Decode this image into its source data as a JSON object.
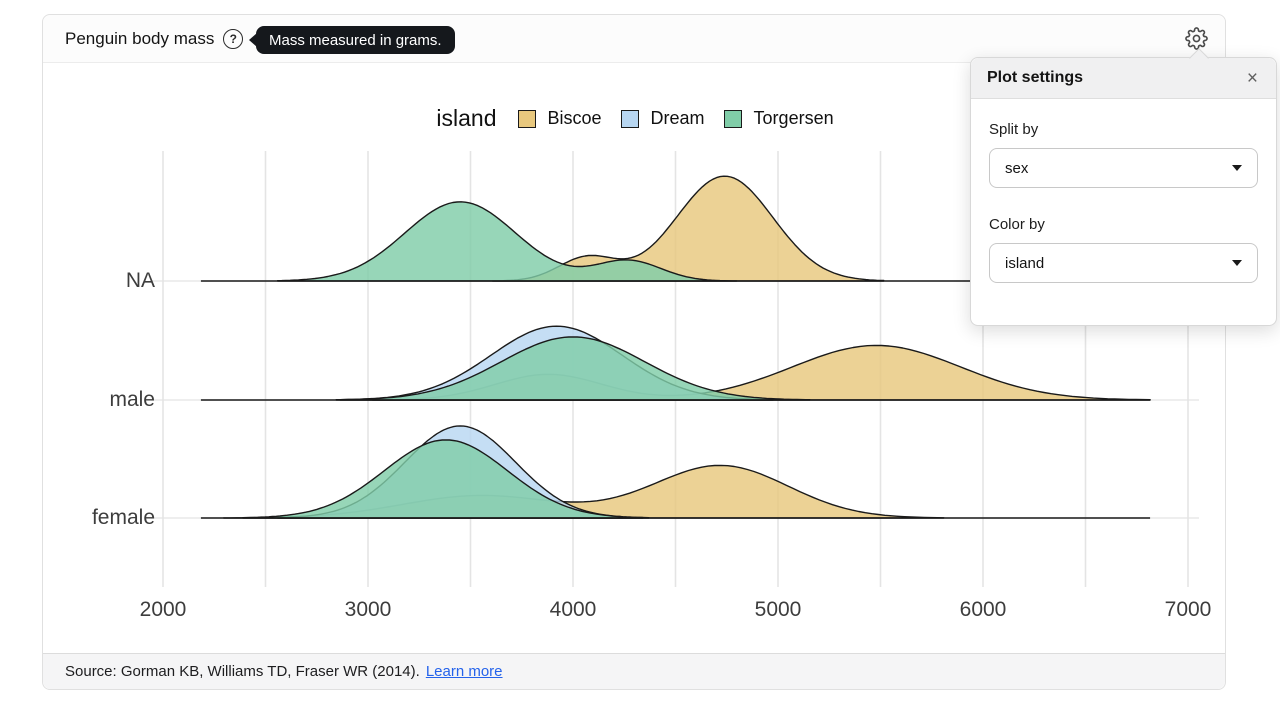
{
  "header": {
    "title": "Penguin body mass",
    "help_glyph": "?",
    "tooltip": "Mass measured in grams."
  },
  "settings_panel": {
    "title": "Plot settings",
    "close_glyph": "×",
    "fields": [
      {
        "label": "Split by",
        "value": "sex"
      },
      {
        "label": "Color by",
        "value": "island"
      }
    ]
  },
  "footer": {
    "source_text": "Source: Gorman KB, Williams TD, Fraser WR (2014).",
    "link_label": "Learn more"
  },
  "chart_data": {
    "type": "area",
    "subtype": "ridgeline-density",
    "legend_title": "island",
    "legend_position": "top-center",
    "x_unit": "body mass (grams)",
    "xlim": [
      2000,
      7000
    ],
    "x_ticks": [
      2000,
      3000,
      4000,
      5000,
      6000,
      7000
    ],
    "grid_step": 500,
    "grid": true,
    "rows": [
      "NA",
      "male",
      "female"
    ],
    "series": [
      {
        "name": "Biscoe",
        "color": "#e8c87e"
      },
      {
        "name": "Dream",
        "color": "#b8d7f2"
      },
      {
        "name": "Torgersen",
        "color": "#80cda8"
      }
    ],
    "baseline_extent": [
      2185,
      6815
    ],
    "densities": [
      {
        "row": "NA",
        "series": "Biscoe",
        "components": [
          {
            "mean": 4070,
            "sd": 140,
            "height": 0.22
          },
          {
            "mean": 4740,
            "sd": 235,
            "height": 0.98
          }
        ]
      },
      {
        "row": "NA",
        "series": "Torgersen",
        "components": [
          {
            "mean": 3450,
            "sd": 270,
            "height": 0.74
          },
          {
            "mean": 4270,
            "sd": 160,
            "height": 0.19
          }
        ]
      },
      {
        "row": "male",
        "series": "Biscoe",
        "components": [
          {
            "mean": 3880,
            "sd": 260,
            "height": 0.24
          },
          {
            "mean": 5480,
            "sd": 410,
            "height": 0.51
          }
        ]
      },
      {
        "row": "male",
        "series": "Dream",
        "components": [
          {
            "mean": 3920,
            "sd": 320,
            "height": 0.69
          }
        ]
      },
      {
        "row": "male",
        "series": "Torgersen",
        "components": [
          {
            "mean": 4000,
            "sd": 350,
            "height": 0.59
          }
        ]
      },
      {
        "row": "female",
        "series": "Biscoe",
        "components": [
          {
            "mean": 3550,
            "sd": 380,
            "height": 0.21
          },
          {
            "mean": 4720,
            "sd": 330,
            "height": 0.49
          }
        ]
      },
      {
        "row": "female",
        "series": "Dream",
        "components": [
          {
            "mean": 3450,
            "sd": 270,
            "height": 0.86
          }
        ]
      },
      {
        "row": "female",
        "series": "Torgersen",
        "components": [
          {
            "mean": 3380,
            "sd": 300,
            "height": 0.73
          }
        ]
      }
    ]
  }
}
